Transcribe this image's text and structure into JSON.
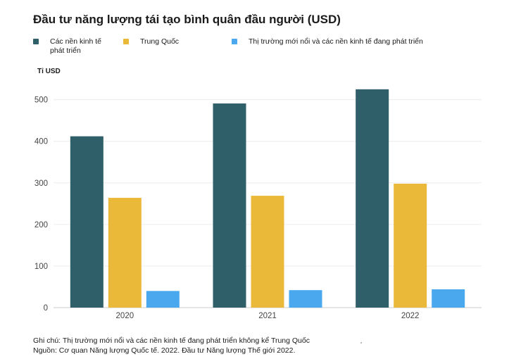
{
  "title": "Đầu tư năng lượng tái tạo bình quân đầu người (USD)",
  "legend": [
    {
      "label": "Các nền kinh tế phát triển",
      "color": "#2f5f68"
    },
    {
      "label": "Trung Quốc",
      "color": "#ebb93a"
    },
    {
      "label": "Thị trường mới nổi và các nền kinh tế đang phát triển",
      "color": "#49a8ee"
    }
  ],
  "chart_data": {
    "type": "bar",
    "title": "Đầu tư năng lượng tái tạo bình quân đầu người (USD)",
    "ylabel": "Tỉ USD",
    "xlabel": "",
    "categories": [
      "2020",
      "2021",
      "2022"
    ],
    "series": [
      {
        "name": "Các nền kinh tế phát triển",
        "values": [
          412,
          491,
          525
        ],
        "color": "#2f5f68"
      },
      {
        "name": "Trung Quốc",
        "values": [
          264,
          269,
          298
        ],
        "color": "#ebb93a"
      },
      {
        "name": "Thị trường mới nổi và các nền kinh tế đang phát triển",
        "values": [
          40,
          42,
          44
        ],
        "color": "#49a8ee"
      }
    ],
    "ylim": [
      0,
      540
    ],
    "yticks": [
      0,
      100,
      200,
      300,
      400,
      500
    ],
    "grid": true,
    "legend_position": "top"
  },
  "notes": {
    "note": "Ghi chú: Thị trường mới nổi và các nền kinh tế đang phát triển không kể Trung Quốc",
    "source": "Nguồn: Cơ quan Năng lượng Quốc tế. 2022.  Đầu tư Năng lượng Thế giới 2022."
  }
}
